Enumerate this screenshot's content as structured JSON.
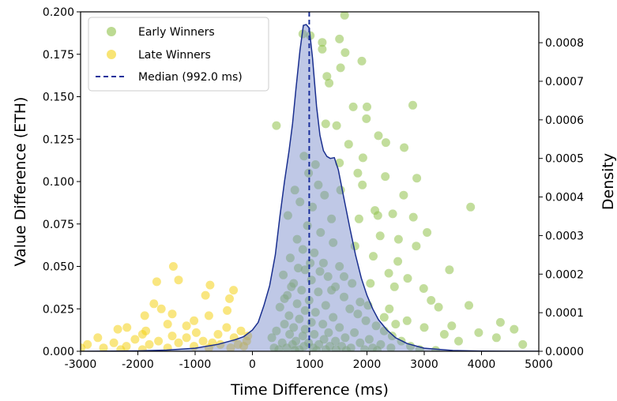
{
  "chart_data": {
    "type": "scatter",
    "xlabel": "Time Difference (ms)",
    "ylabel": "Value Difference (ETH)",
    "y2label": "Density",
    "xlim": [
      -3000,
      5000
    ],
    "ylim": [
      0,
      0.2
    ],
    "y2lim": [
      0,
      0.00088
    ],
    "xticks": [
      "-3000",
      "-2000",
      "-1000",
      "0",
      "1000",
      "2000",
      "3000",
      "4000",
      "5000"
    ],
    "yticks": [
      "0.000",
      "0.025",
      "0.050",
      "0.075",
      "0.100",
      "0.125",
      "0.150",
      "0.175",
      "0.200"
    ],
    "y2ticks": [
      "0.0000",
      "0.0001",
      "0.0002",
      "0.0003",
      "0.0004",
      "0.0005",
      "0.0006",
      "0.0007",
      "0.0008"
    ],
    "grid": false,
    "legend_position": "top-left",
    "median_ms": 992.0,
    "colors": {
      "early": "#8fc14a",
      "late": "#f4d218",
      "kde_fill": "#7084c8",
      "kde_line": "#1a2f8f",
      "median": "#1a2f9b"
    },
    "legend": [
      "Early Winners",
      "Late Winners",
      "Median (992.0 ms)"
    ],
    "series": [
      {
        "name": "Early Winners",
        "points": [
          [
            1610,
            0.198
          ],
          [
            880,
            0.187
          ],
          [
            1010,
            0.186
          ],
          [
            1220,
            0.182
          ],
          [
            1220,
            0.178
          ],
          [
            1520,
            0.184
          ],
          [
            1620,
            0.176
          ],
          [
            1910,
            0.171
          ],
          [
            1540,
            0.167
          ],
          [
            1340,
            0.158
          ],
          [
            1300,
            0.162
          ],
          [
            1760,
            0.144
          ],
          [
            2000,
            0.144
          ],
          [
            2800,
            0.145
          ],
          [
            1990,
            0.137
          ],
          [
            1280,
            0.134
          ],
          [
            420,
            0.133
          ],
          [
            1470,
            0.133
          ],
          [
            2200,
            0.127
          ],
          [
            1680,
            0.122
          ],
          [
            2330,
            0.123
          ],
          [
            2650,
            0.12
          ],
          [
            1930,
            0.114
          ],
          [
            1520,
            0.111
          ],
          [
            1840,
            0.105
          ],
          [
            2320,
            0.103
          ],
          [
            2870,
            0.102
          ],
          [
            1920,
            0.098
          ],
          [
            1540,
            0.095
          ],
          [
            2640,
            0.092
          ],
          [
            3810,
            0.085
          ],
          [
            2140,
            0.083
          ],
          [
            2450,
            0.081
          ],
          [
            2810,
            0.079
          ],
          [
            1860,
            0.078
          ],
          [
            2190,
            0.08
          ],
          [
            3050,
            0.07
          ],
          [
            2230,
            0.068
          ],
          [
            2550,
            0.066
          ],
          [
            1790,
            0.062
          ],
          [
            2860,
            0.062
          ],
          [
            2110,
            0.056
          ],
          [
            2540,
            0.053
          ],
          [
            3440,
            0.048
          ],
          [
            2380,
            0.046
          ],
          [
            2710,
            0.043
          ],
          [
            2060,
            0.04
          ],
          [
            2480,
            0.038
          ],
          [
            2990,
            0.037
          ],
          [
            3120,
            0.03
          ],
          [
            3250,
            0.026
          ],
          [
            3780,
            0.027
          ],
          [
            2390,
            0.025
          ],
          [
            4330,
            0.017
          ],
          [
            3480,
            0.015
          ],
          [
            4570,
            0.013
          ],
          [
            3950,
            0.011
          ],
          [
            4260,
            0.008
          ],
          [
            3600,
            0.006
          ],
          [
            4720,
            0.004
          ],
          [
            900,
            0.115
          ],
          [
            1100,
            0.11
          ],
          [
            980,
            0.105
          ],
          [
            1150,
            0.098
          ],
          [
            740,
            0.095
          ],
          [
            1260,
            0.092
          ],
          [
            830,
            0.088
          ],
          [
            1050,
            0.085
          ],
          [
            620,
            0.08
          ],
          [
            1380,
            0.078
          ],
          [
            960,
            0.074
          ],
          [
            1190,
            0.07
          ],
          [
            780,
            0.066
          ],
          [
            1410,
            0.064
          ],
          [
            880,
            0.06
          ],
          [
            1080,
            0.058
          ],
          [
            660,
            0.055
          ],
          [
            1240,
            0.052
          ],
          [
            1520,
            0.05
          ],
          [
            920,
            0.048
          ],
          [
            540,
            0.045
          ],
          [
            1320,
            0.044
          ],
          [
            1030,
            0.042
          ],
          [
            720,
            0.04
          ],
          [
            1450,
            0.038
          ],
          [
            860,
            0.036
          ],
          [
            1150,
            0.035
          ],
          [
            610,
            0.033
          ],
          [
            1600,
            0.032
          ],
          [
            990,
            0.03
          ],
          [
            780,
            0.028
          ],
          [
            1280,
            0.027
          ],
          [
            480,
            0.026
          ],
          [
            1700,
            0.025
          ],
          [
            920,
            0.024
          ],
          [
            1100,
            0.023
          ],
          [
            1840,
            0.022
          ],
          [
            640,
            0.021
          ],
          [
            1410,
            0.02
          ],
          [
            820,
            0.019
          ],
          [
            1980,
            0.018
          ],
          [
            1030,
            0.017
          ],
          [
            560,
            0.016
          ],
          [
            1230,
            0.016
          ],
          [
            2160,
            0.015
          ],
          [
            720,
            0.014
          ],
          [
            1520,
            0.014
          ],
          [
            920,
            0.013
          ],
          [
            2300,
            0.012
          ],
          [
            420,
            0.012
          ],
          [
            1330,
            0.011
          ],
          [
            1780,
            0.011
          ],
          [
            650,
            0.01
          ],
          [
            1080,
            0.01
          ],
          [
            2440,
            0.009
          ],
          [
            880,
            0.009
          ],
          [
            1620,
            0.008
          ],
          [
            340,
            0.008
          ],
          [
            1250,
            0.007
          ],
          [
            2040,
            0.007
          ],
          [
            760,
            0.006
          ],
          [
            1450,
            0.006
          ],
          [
            2600,
            0.006
          ],
          [
            980,
            0.005
          ],
          [
            520,
            0.005
          ],
          [
            1880,
            0.005
          ],
          [
            1160,
            0.004
          ],
          [
            2240,
            0.004
          ],
          [
            700,
            0.004
          ],
          [
            1350,
            0.003
          ],
          [
            2760,
            0.003
          ],
          [
            900,
            0.003
          ],
          [
            1560,
            0.003
          ],
          [
            380,
            0.002
          ],
          [
            2100,
            0.002
          ],
          [
            1060,
            0.002
          ],
          [
            1720,
            0.002
          ],
          [
            600,
            0.002
          ],
          [
            2420,
            0.002
          ],
          [
            1280,
            0.001
          ],
          [
            820,
            0.001
          ],
          [
            1960,
            0.001
          ],
          [
            2920,
            0.001
          ],
          [
            460,
            0.001
          ],
          [
            1460,
            0.001
          ],
          [
            1120,
            0.0005
          ],
          [
            2180,
            0.0005
          ],
          [
            740,
            0.0005
          ],
          [
            1640,
            0.0005
          ],
          [
            3200,
            0.0005
          ],
          [
            560,
            0.031
          ],
          [
            1880,
            0.029
          ],
          [
            1380,
            0.036
          ],
          [
            2020,
            0.027
          ],
          [
            680,
            0.038
          ],
          [
            1740,
            0.04
          ],
          [
            1010,
            0.052
          ],
          [
            1180,
            0.047
          ],
          [
            1600,
            0.044
          ],
          [
            800,
            0.049
          ],
          [
            2300,
            0.02
          ],
          [
            2700,
            0.018
          ],
          [
            3000,
            0.014
          ],
          [
            2500,
            0.016
          ],
          [
            3350,
            0.01
          ]
        ]
      },
      {
        "name": "Late Winners",
        "points": [
          [
            -1380,
            0.05
          ],
          [
            -1290,
            0.042
          ],
          [
            -1670,
            0.041
          ],
          [
            -740,
            0.039
          ],
          [
            -330,
            0.036
          ],
          [
            -820,
            0.033
          ],
          [
            -400,
            0.031
          ],
          [
            -1720,
            0.028
          ],
          [
            -1590,
            0.025
          ],
          [
            -1400,
            0.022
          ],
          [
            -1880,
            0.021
          ],
          [
            -760,
            0.021
          ],
          [
            -1020,
            0.018
          ],
          [
            -440,
            0.024
          ],
          [
            -1480,
            0.016
          ],
          [
            -1150,
            0.015
          ],
          [
            -2190,
            0.014
          ],
          [
            -2350,
            0.013
          ],
          [
            -1860,
            0.012
          ],
          [
            -980,
            0.011
          ],
          [
            -1920,
            0.01
          ],
          [
            -1400,
            0.009
          ],
          [
            -2700,
            0.008
          ],
          [
            -1150,
            0.008
          ],
          [
            -2050,
            0.007
          ],
          [
            -1640,
            0.006
          ],
          [
            -860,
            0.006
          ],
          [
            -2420,
            0.005
          ],
          [
            -1290,
            0.005
          ],
          [
            -2880,
            0.004
          ],
          [
            -1800,
            0.004
          ],
          [
            -560,
            0.004
          ],
          [
            -2200,
            0.003
          ],
          [
            -1020,
            0.003
          ],
          [
            -2600,
            0.002
          ],
          [
            -1480,
            0.002
          ],
          [
            -2990,
            0.002
          ],
          [
            -760,
            0.002
          ],
          [
            -1920,
            0.001
          ],
          [
            -320,
            0.008
          ],
          [
            -200,
            0.012
          ],
          [
            -100,
            0.006
          ],
          [
            -450,
            0.014
          ],
          [
            -250,
            0.004
          ],
          [
            -600,
            0.01
          ],
          [
            -150,
            0.003
          ],
          [
            -380,
            0.002
          ],
          [
            -80,
            0.009
          ],
          [
            -700,
            0.005
          ],
          [
            -2300,
            0.001
          ]
        ]
      }
    ],
    "kde": [
      [
        -3000,
        0.0
      ],
      [
        -2000,
        1e-06
      ],
      [
        -1500,
        3e-06
      ],
      [
        -1000,
        8e-06
      ],
      [
        -600,
        1.8e-05
      ],
      [
        -300,
        3e-05
      ],
      [
        -150,
        3.8e-05
      ],
      [
        0,
        5.5e-05
      ],
      [
        100,
        7.5e-05
      ],
      [
        200,
        0.000118
      ],
      [
        300,
        0.00017
      ],
      [
        400,
        0.00025
      ],
      [
        480,
        0.00035
      ],
      [
        560,
        0.00044
      ],
      [
        640,
        0.00052
      ],
      [
        700,
        0.00059
      ],
      [
        760,
        0.00068
      ],
      [
        830,
        0.00078
      ],
      [
        890,
        0.000845
      ],
      [
        940,
        0.000847
      ],
      [
        992,
        0.000838
      ],
      [
        1050,
        0.00076
      ],
      [
        1120,
        0.000635
      ],
      [
        1180,
        0.00056
      ],
      [
        1240,
        0.00052
      ],
      [
        1300,
        0.000505
      ],
      [
        1360,
        0.0005
      ],
      [
        1430,
        0.000502
      ],
      [
        1500,
        0.00047
      ],
      [
        1600,
        0.000395
      ],
      [
        1700,
        0.00032
      ],
      [
        1800,
        0.00025
      ],
      [
        1900,
        0.00019
      ],
      [
        2000,
        0.000145
      ],
      [
        2100,
        0.00011
      ],
      [
        2200,
        8.2e-05
      ],
      [
        2350,
        5.5e-05
      ],
      [
        2500,
        3.5e-05
      ],
      [
        2700,
        2e-05
      ],
      [
        3000,
        8e-06
      ],
      [
        3500,
        2e-06
      ],
      [
        4000,
        5e-07
      ],
      [
        5000,
        0.0
      ]
    ]
  }
}
